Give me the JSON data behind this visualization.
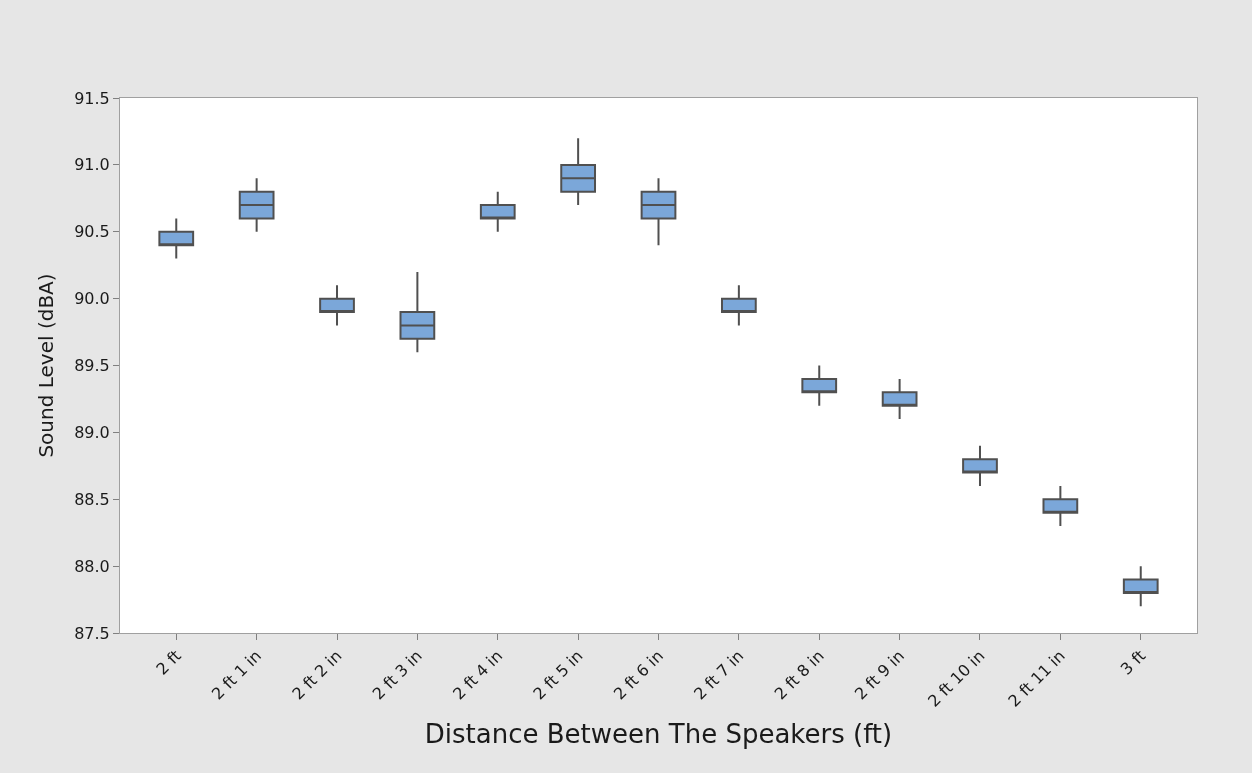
{
  "chart_data": {
    "type": "box",
    "xlabel": "Distance Between The Speakers (ft)",
    "ylabel": "Sound Level (dBA)",
    "categories": [
      "2 ft",
      "2 ft 1 in",
      "2 ft 2 in",
      "2 ft 3 in",
      "2 ft 4 in",
      "2 ft 5 in",
      "2 ft 6 in",
      "2 ft 7 in",
      "2 ft 8 in",
      "2 ft 9 in",
      "2 ft 10 in",
      "2 ft 11 in",
      "3 ft"
    ],
    "color": "#7ba7d9",
    "boxes": [
      {
        "low": 90.3,
        "q1": 90.4,
        "median": 90.4,
        "q3": 90.5,
        "high": 90.6
      },
      {
        "low": 90.5,
        "q1": 90.6,
        "median": 90.7,
        "q3": 90.8,
        "high": 90.9
      },
      {
        "low": 89.8,
        "q1": 89.9,
        "median": 89.9,
        "q3": 90.0,
        "high": 90.1
      },
      {
        "low": 89.6,
        "q1": 89.7,
        "median": 89.8,
        "q3": 89.9,
        "high": 90.2
      },
      {
        "low": 90.5,
        "q1": 90.6,
        "median": 90.6,
        "q3": 90.7,
        "high": 90.8
      },
      {
        "low": 90.7,
        "q1": 90.8,
        "median": 90.9,
        "q3": 91.0,
        "high": 91.2
      },
      {
        "low": 90.4,
        "q1": 90.6,
        "median": 90.7,
        "q3": 90.8,
        "high": 90.9
      },
      {
        "low": 89.8,
        "q1": 89.9,
        "median": 89.9,
        "q3": 90.0,
        "high": 90.1
      },
      {
        "low": 89.2,
        "q1": 89.3,
        "median": 89.3,
        "q3": 89.4,
        "high": 89.5
      },
      {
        "low": 89.1,
        "q1": 89.2,
        "median": 89.2,
        "q3": 89.3,
        "high": 89.4
      },
      {
        "low": 88.6,
        "q1": 88.7,
        "median": 88.7,
        "q3": 88.8,
        "high": 88.9
      },
      {
        "low": 88.3,
        "q1": 88.4,
        "median": 88.4,
        "q3": 88.5,
        "high": 88.6
      },
      {
        "low": 87.7,
        "q1": 87.8,
        "median": 87.8,
        "q3": 87.9,
        "high": 88.0
      }
    ],
    "ylim": [
      87.5,
      91.5
    ],
    "yticks": [
      {
        "value": 87.5,
        "label": "87.5"
      },
      {
        "value": 88,
        "label": "88.0"
      },
      {
        "value": 88.5,
        "label": "88.5"
      },
      {
        "value": 89,
        "label": "89.0"
      },
      {
        "value": 89.5,
        "label": "89.5"
      },
      {
        "value": 90,
        "label": "90.0"
      },
      {
        "value": 90.5,
        "label": "90.5"
      },
      {
        "value": 91,
        "label": "91.0"
      },
      {
        "value": 91.5,
        "label": "91.5"
      }
    ],
    "legend": false
  }
}
